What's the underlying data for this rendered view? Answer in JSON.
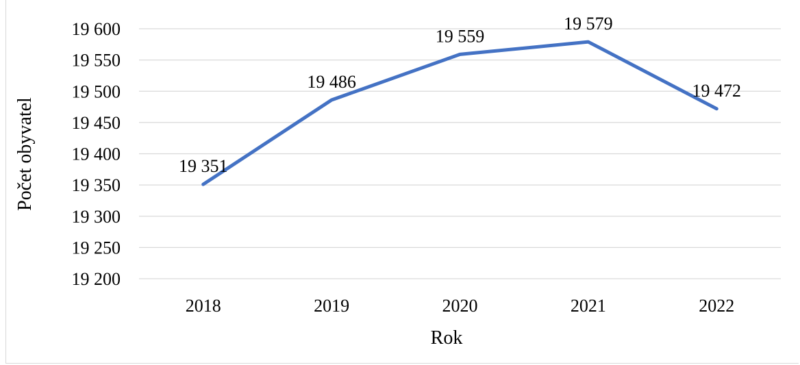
{
  "chart_data": {
    "type": "line",
    "title": "",
    "xlabel": "Rok",
    "ylabel": "Počet obyvatel",
    "categories": [
      "2018",
      "2019",
      "2020",
      "2021",
      "2022"
    ],
    "series": [
      {
        "values": [
          19351,
          19486,
          19559,
          19579,
          19472
        ],
        "labels": [
          "19 351",
          "19 486",
          "19 559",
          "19 579",
          "19 472"
        ]
      }
    ],
    "ylim": [
      19200,
      19600
    ],
    "yticks": [
      19200,
      19250,
      19300,
      19350,
      19400,
      19450,
      19500,
      19550,
      19600
    ],
    "ytick_labels": [
      "19 200",
      "19 250",
      "19 300",
      "19 350",
      "19 400",
      "19 450",
      "19 500",
      "19 550",
      "19 600"
    ],
    "grid": true,
    "line_color": "#4472c4",
    "grid_color": "#d9d9d9"
  }
}
